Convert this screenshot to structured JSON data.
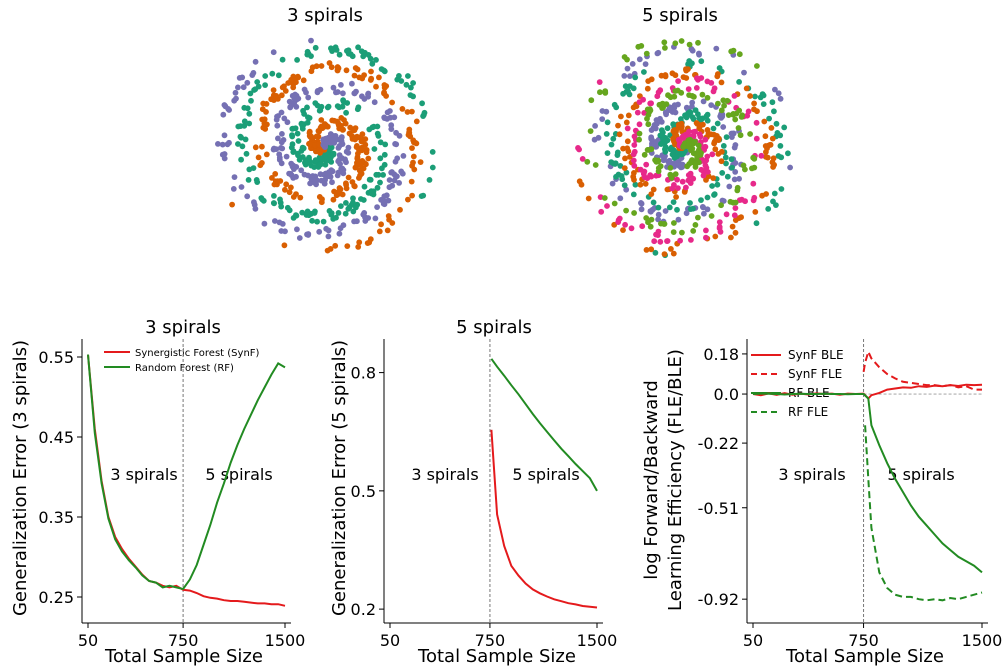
{
  "colors": {
    "synf": "#e41a1c",
    "rf": "#228b22",
    "spiral_classes": [
      "#1b9e77",
      "#d95f02",
      "#7570b3",
      "#e7298a",
      "#66a61e"
    ]
  },
  "chart_data": [
    {
      "type": "scatter",
      "title": "3 spirals",
      "n_classes": 3,
      "points_per_class": 250
    },
    {
      "type": "scatter",
      "title": "5 spirals",
      "n_classes": 5,
      "points_per_class": 150
    },
    {
      "type": "line",
      "title": "3 spirals",
      "xlabel": "Total Sample Size",
      "ylabel": "Generalization Error (3 spirals)",
      "xlim": [
        50,
        1500
      ],
      "ylim": [
        0.225,
        0.565
      ],
      "xticks": [
        "50",
        "750",
        "1500"
      ],
      "yticks": [
        "0.25",
        "0.35",
        "0.45",
        "0.55"
      ],
      "divider_x": 750,
      "regions": [
        "3 spirals",
        "5 spirals"
      ],
      "legend": [
        "Synergistic Forest (SynF)",
        "Random Forest (RF)"
      ],
      "series": [
        {
          "name": "Synergistic Forest (SynF)",
          "color": "#e41a1c",
          "x": [
            50,
            100,
            150,
            200,
            250,
            300,
            350,
            400,
            450,
            500,
            550,
            600,
            650,
            700,
            750,
            800,
            850,
            900,
            950,
            1000,
            1050,
            1100,
            1150,
            1200,
            1250,
            1300,
            1350,
            1400,
            1450,
            1500
          ],
          "y": [
            0.553,
            0.46,
            0.395,
            0.35,
            0.325,
            0.31,
            0.298,
            0.288,
            0.278,
            0.27,
            0.268,
            0.264,
            0.262,
            0.264,
            0.259,
            0.258,
            0.255,
            0.251,
            0.249,
            0.248,
            0.246,
            0.245,
            0.245,
            0.244,
            0.243,
            0.242,
            0.242,
            0.241,
            0.241,
            0.239
          ]
        },
        {
          "name": "Random Forest (RF)",
          "color": "#228b22",
          "x": [
            50,
            100,
            150,
            200,
            250,
            300,
            350,
            400,
            450,
            500,
            550,
            600,
            650,
            700,
            750,
            800,
            850,
            900,
            950,
            1000,
            1050,
            1100,
            1150,
            1200,
            1250,
            1300,
            1350,
            1400,
            1450,
            1500
          ],
          "y": [
            0.553,
            0.455,
            0.392,
            0.348,
            0.322,
            0.307,
            0.296,
            0.287,
            0.277,
            0.27,
            0.268,
            0.262,
            0.264,
            0.262,
            0.26,
            0.272,
            0.29,
            0.315,
            0.34,
            0.368,
            0.392,
            0.418,
            0.44,
            0.46,
            0.478,
            0.496,
            0.512,
            0.528,
            0.542,
            0.537
          ]
        }
      ]
    },
    {
      "type": "line",
      "title": "5 spirals",
      "xlabel": "Total Sample Size",
      "ylabel": "Generalization Error (5 spirals)",
      "xlim": [
        50,
        1500
      ],
      "ylim": [
        0.18,
        0.87
      ],
      "xticks": [
        "50",
        "750",
        "1500"
      ],
      "yticks": [
        "0.2",
        "0.5",
        "0.8"
      ],
      "divider_x": 750,
      "regions": [
        "3 spirals",
        "5 spirals"
      ],
      "series": [
        {
          "name": "Synergistic Forest (SynF)",
          "color": "#e41a1c",
          "x": [
            760,
            800,
            850,
            900,
            950,
            1000,
            1050,
            1100,
            1150,
            1200,
            1250,
            1300,
            1350,
            1400,
            1450,
            1500
          ],
          "y": [
            0.655,
            0.44,
            0.36,
            0.31,
            0.285,
            0.265,
            0.25,
            0.24,
            0.232,
            0.225,
            0.22,
            0.215,
            0.212,
            0.208,
            0.206,
            0.204
          ]
        },
        {
          "name": "Random Forest (RF)",
          "color": "#228b22",
          "x": [
            760,
            800,
            850,
            900,
            950,
            1000,
            1050,
            1100,
            1150,
            1200,
            1250,
            1300,
            1350,
            1400,
            1450,
            1500
          ],
          "y": [
            0.835,
            0.815,
            0.792,
            0.768,
            0.745,
            0.72,
            0.695,
            0.672,
            0.65,
            0.628,
            0.607,
            0.588,
            0.568,
            0.55,
            0.532,
            0.5
          ]
        }
      ]
    },
    {
      "type": "line",
      "xlabel": "Total Sample Size",
      "ylabel": "log Forward/Backward Learning Efficiency (FLE/BLE)",
      "xlim": [
        50,
        1500
      ],
      "ylim": [
        -1.0,
        0.22
      ],
      "xticks": [
        "50",
        "750",
        "1500"
      ],
      "yticks": [
        "0.18",
        "0.0",
        "-0.22",
        "-0.51",
        "-0.92"
      ],
      "divider_x": 750,
      "zero_line": true,
      "regions": [
        "3 spirals",
        "5 spirals"
      ],
      "legend": [
        "SynF BLE",
        "SynF FLE",
        "RF BLE",
        "RF FLE"
      ],
      "series": [
        {
          "name": "SynF BLE",
          "color": "#e41a1c",
          "dashed": false,
          "x": [
            50,
            100,
            150,
            200,
            250,
            300,
            350,
            400,
            450,
            500,
            550,
            600,
            650,
            700,
            750,
            780,
            800,
            850,
            900,
            950,
            1000,
            1050,
            1100,
            1150,
            1200,
            1250,
            1300,
            1350,
            1400,
            1450,
            1500
          ],
          "y": [
            0.0,
            -0.005,
            0.003,
            -0.004,
            0.004,
            -0.003,
            0.002,
            -0.002,
            0.003,
            0.0,
            0.002,
            -0.003,
            0.002,
            0.0,
            0.002,
            -0.02,
            -0.005,
            0.005,
            0.02,
            0.025,
            0.03,
            0.028,
            0.035,
            0.032,
            0.038,
            0.035,
            0.04,
            0.036,
            0.042,
            0.04,
            0.042
          ]
        },
        {
          "name": "SynF FLE",
          "color": "#e41a1c",
          "dashed": true,
          "x": [
            750,
            760,
            780,
            800,
            850,
            900,
            950,
            1000,
            1050,
            1100,
            1150,
            1200,
            1250,
            1300,
            1350,
            1400,
            1450,
            1500
          ],
          "y": [
            0.1,
            0.14,
            0.19,
            0.16,
            0.12,
            0.09,
            0.07,
            0.055,
            0.05,
            0.045,
            0.04,
            0.04,
            0.035,
            0.04,
            0.03,
            0.035,
            0.02,
            0.02
          ]
        },
        {
          "name": "RF BLE",
          "color": "#228b22",
          "dashed": false,
          "x": [
            50,
            100,
            150,
            200,
            250,
            300,
            350,
            400,
            450,
            500,
            550,
            600,
            650,
            700,
            750,
            780,
            800,
            850,
            900,
            950,
            1000,
            1050,
            1100,
            1150,
            1200,
            1250,
            1300,
            1350,
            1400,
            1450,
            1500
          ],
          "y": [
            0.0,
            0.002,
            0.001,
            0.0,
            -0.002,
            0.0,
            0.001,
            0.0,
            0.0,
            0.001,
            0.0,
            0.0,
            -0.001,
            0.0,
            0.0,
            -0.02,
            -0.14,
            -0.23,
            -0.31,
            -0.38,
            -0.44,
            -0.5,
            -0.55,
            -0.59,
            -0.63,
            -0.67,
            -0.7,
            -0.73,
            -0.75,
            -0.77,
            -0.8
          ]
        },
        {
          "name": "RF FLE",
          "color": "#228b22",
          "dashed": true,
          "x": [
            760,
            780,
            800,
            850,
            900,
            950,
            1000,
            1050,
            1100,
            1150,
            1200,
            1250,
            1300,
            1350,
            1400,
            1450,
            1500
          ],
          "y": [
            -0.14,
            -0.38,
            -0.6,
            -0.8,
            -0.87,
            -0.9,
            -0.91,
            -0.91,
            -0.92,
            -0.925,
            -0.92,
            -0.925,
            -0.915,
            -0.92,
            -0.91,
            -0.9,
            -0.89
          ]
        }
      ]
    }
  ]
}
